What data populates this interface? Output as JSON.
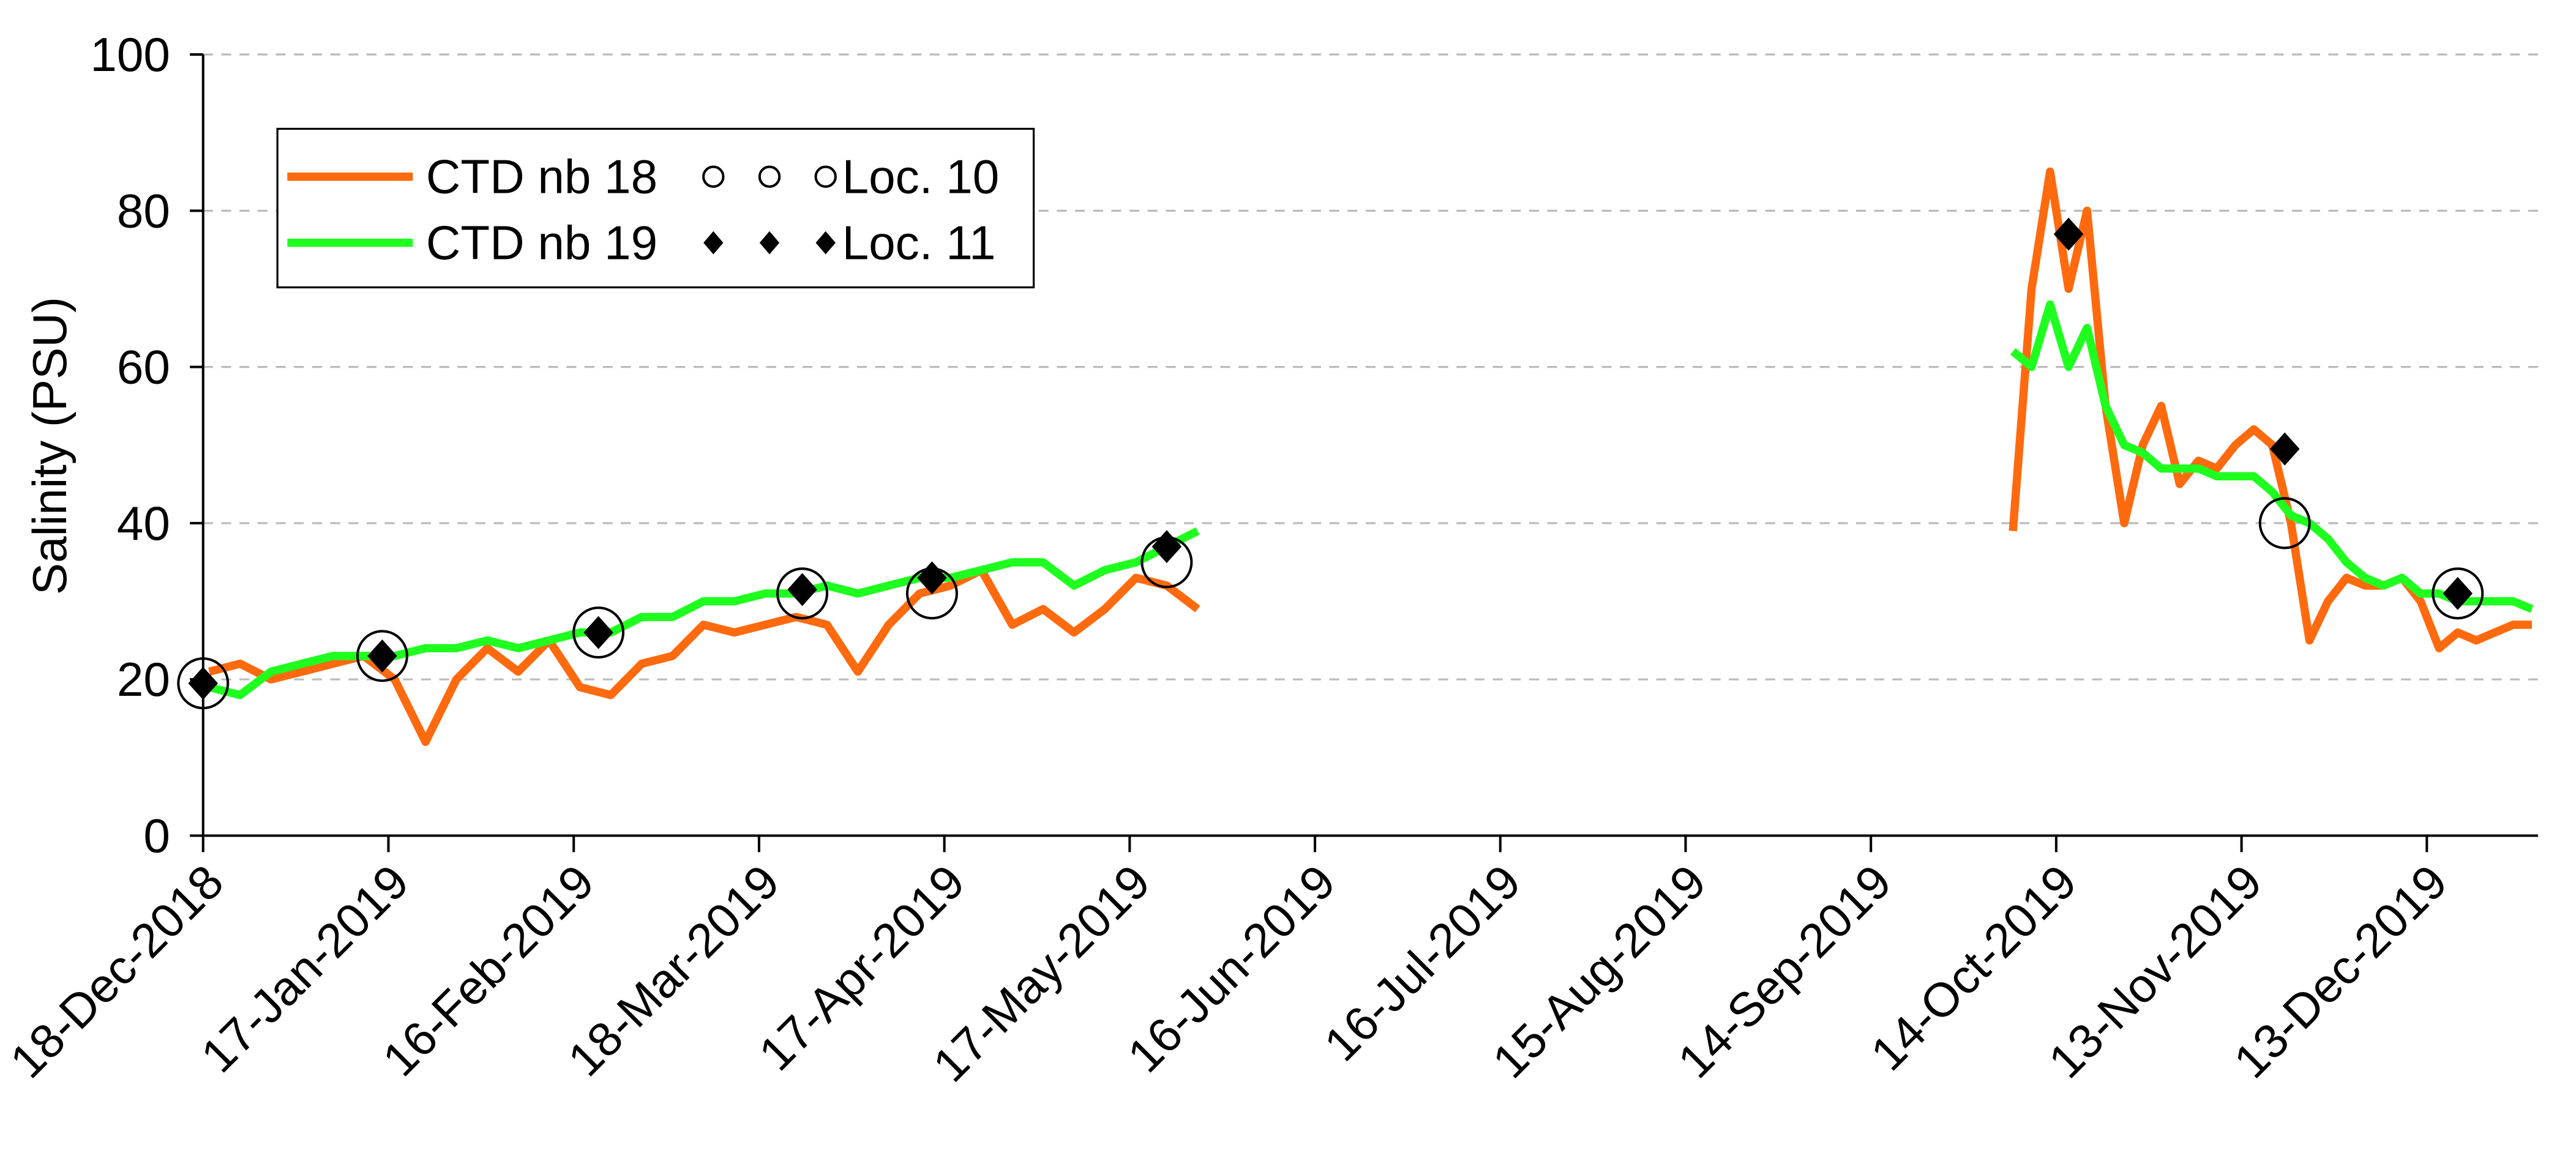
{
  "chart_data": {
    "type": "line",
    "y_label": "Salinity (PSU)",
    "ylim": [
      0,
      100
    ],
    "yticks": [
      0,
      20,
      40,
      60,
      80,
      100
    ],
    "xlim": [
      "2018-12-18",
      "2019-12-31"
    ],
    "xticks": [
      {
        "value": "2018-12-18",
        "label": "18-Dec-2018"
      },
      {
        "value": "2019-01-17",
        "label": "17-Jan-2019"
      },
      {
        "value": "2019-02-16",
        "label": "16-Feb-2019"
      },
      {
        "value": "2019-03-18",
        "label": "18-Mar-2019"
      },
      {
        "value": "2019-04-17",
        "label": "17-Apr-2019"
      },
      {
        "value": "2019-05-17",
        "label": "17-May-2019"
      },
      {
        "value": "2019-06-16",
        "label": "16-Jun-2019"
      },
      {
        "value": "2019-07-16",
        "label": "16-Jul-2019"
      },
      {
        "value": "2019-08-15",
        "label": "15-Aug-2019"
      },
      {
        "value": "2019-09-14",
        "label": "14-Sep-2019"
      },
      {
        "value": "2019-10-14",
        "label": "14-Oct-2019"
      },
      {
        "value": "2019-11-13",
        "label": "13-Nov-2019"
      },
      {
        "value": "2019-12-13",
        "label": "13-Dec-2019"
      }
    ],
    "grid": true,
    "legend": "upper left",
    "x": [
      "2018-12-19",
      "2018-12-24",
      "2018-12-29",
      "2019-01-03",
      "2019-01-08",
      "2019-01-13",
      "2019-01-18",
      "2019-01-23",
      "2019-01-28",
      "2019-02-02",
      "2019-02-07",
      "2019-02-12",
      "2019-02-17",
      "2019-02-22",
      "2019-02-27",
      "2019-03-04",
      "2019-03-09",
      "2019-03-14",
      "2019-03-19",
      "2019-03-24",
      "2019-03-29",
      "2019-04-03",
      "2019-04-08",
      "2019-04-13",
      "2019-04-18",
      "2019-04-23",
      "2019-04-28",
      "2019-05-03",
      "2019-05-08",
      "2019-05-13",
      "2019-05-18",
      "2019-05-23",
      "2019-05-28",
      "2019-07-15",
      "2019-10-07",
      "2019-10-10",
      "2019-10-13",
      "2019-10-16",
      "2019-10-19",
      "2019-10-22",
      "2019-10-25",
      "2019-10-28",
      "2019-10-31",
      "2019-11-03",
      "2019-11-06",
      "2019-11-09",
      "2019-11-12",
      "2019-11-15",
      "2019-11-18",
      "2019-11-21",
      "2019-11-24",
      "2019-11-27",
      "2019-11-30",
      "2019-12-03",
      "2019-12-06",
      "2019-12-09",
      "2019-12-12",
      "2019-12-15",
      "2019-12-18",
      "2019-12-21",
      "2019-12-24",
      "2019-12-27",
      "2019-12-30"
    ],
    "series": [
      {
        "name": "CTD nb 18",
        "type": "line",
        "color": "#ff6a0e",
        "values": [
          21,
          22,
          20,
          21,
          22,
          23,
          20,
          12,
          20,
          24,
          21,
          25,
          19,
          18,
          22,
          23,
          27,
          26,
          27,
          28,
          27,
          21,
          27,
          31,
          32,
          34,
          27,
          29,
          26,
          29,
          33,
          32,
          29,
          null,
          39,
          70,
          85,
          70,
          80,
          55,
          40,
          50,
          55,
          45,
          48,
          47,
          50,
          52,
          50,
          40,
          25,
          30,
          33,
          32,
          32,
          33,
          30,
          24,
          26,
          25,
          26,
          27,
          27
        ]
      },
      {
        "name": "CTD nb 19",
        "type": "line",
        "color": "#1fff1f",
        "values": [
          19,
          18,
          21,
          22,
          23,
          23,
          23,
          24,
          24,
          25,
          24,
          25,
          26,
          26,
          28,
          28,
          30,
          30,
          31,
          31,
          32,
          31,
          32,
          33,
          33,
          34,
          35,
          35,
          32,
          34,
          35,
          37,
          39,
          null,
          62,
          60,
          68,
          60,
          65,
          55,
          50,
          49,
          47,
          47,
          47,
          46,
          46,
          46,
          44,
          41,
          40,
          38,
          35,
          33,
          32,
          33,
          31,
          31,
          30,
          30,
          30,
          30,
          29
        ]
      },
      {
        "name": "Loc. 10",
        "type": "scatter",
        "marker": "circle",
        "color": "#000000",
        "x": [
          "2018-12-18",
          "2019-01-16",
          "2019-02-20",
          "2019-03-25",
          "2019-04-15",
          "2019-05-23",
          "2019-11-20",
          "2019-12-18"
        ],
        "values": [
          19.5,
          23,
          26,
          31,
          31,
          35,
          40,
          31
        ]
      },
      {
        "name": "Loc. 11",
        "type": "scatter",
        "marker": "diamond",
        "color": "#000000",
        "x": [
          "2018-12-18",
          "2019-01-16",
          "2019-02-20",
          "2019-03-25",
          "2019-04-15",
          "2019-05-23",
          "2019-10-16",
          "2019-11-20",
          "2019-12-18"
        ],
        "values": [
          19.5,
          23,
          26,
          31.5,
          33,
          37,
          77,
          49.5,
          31
        ]
      }
    ]
  }
}
